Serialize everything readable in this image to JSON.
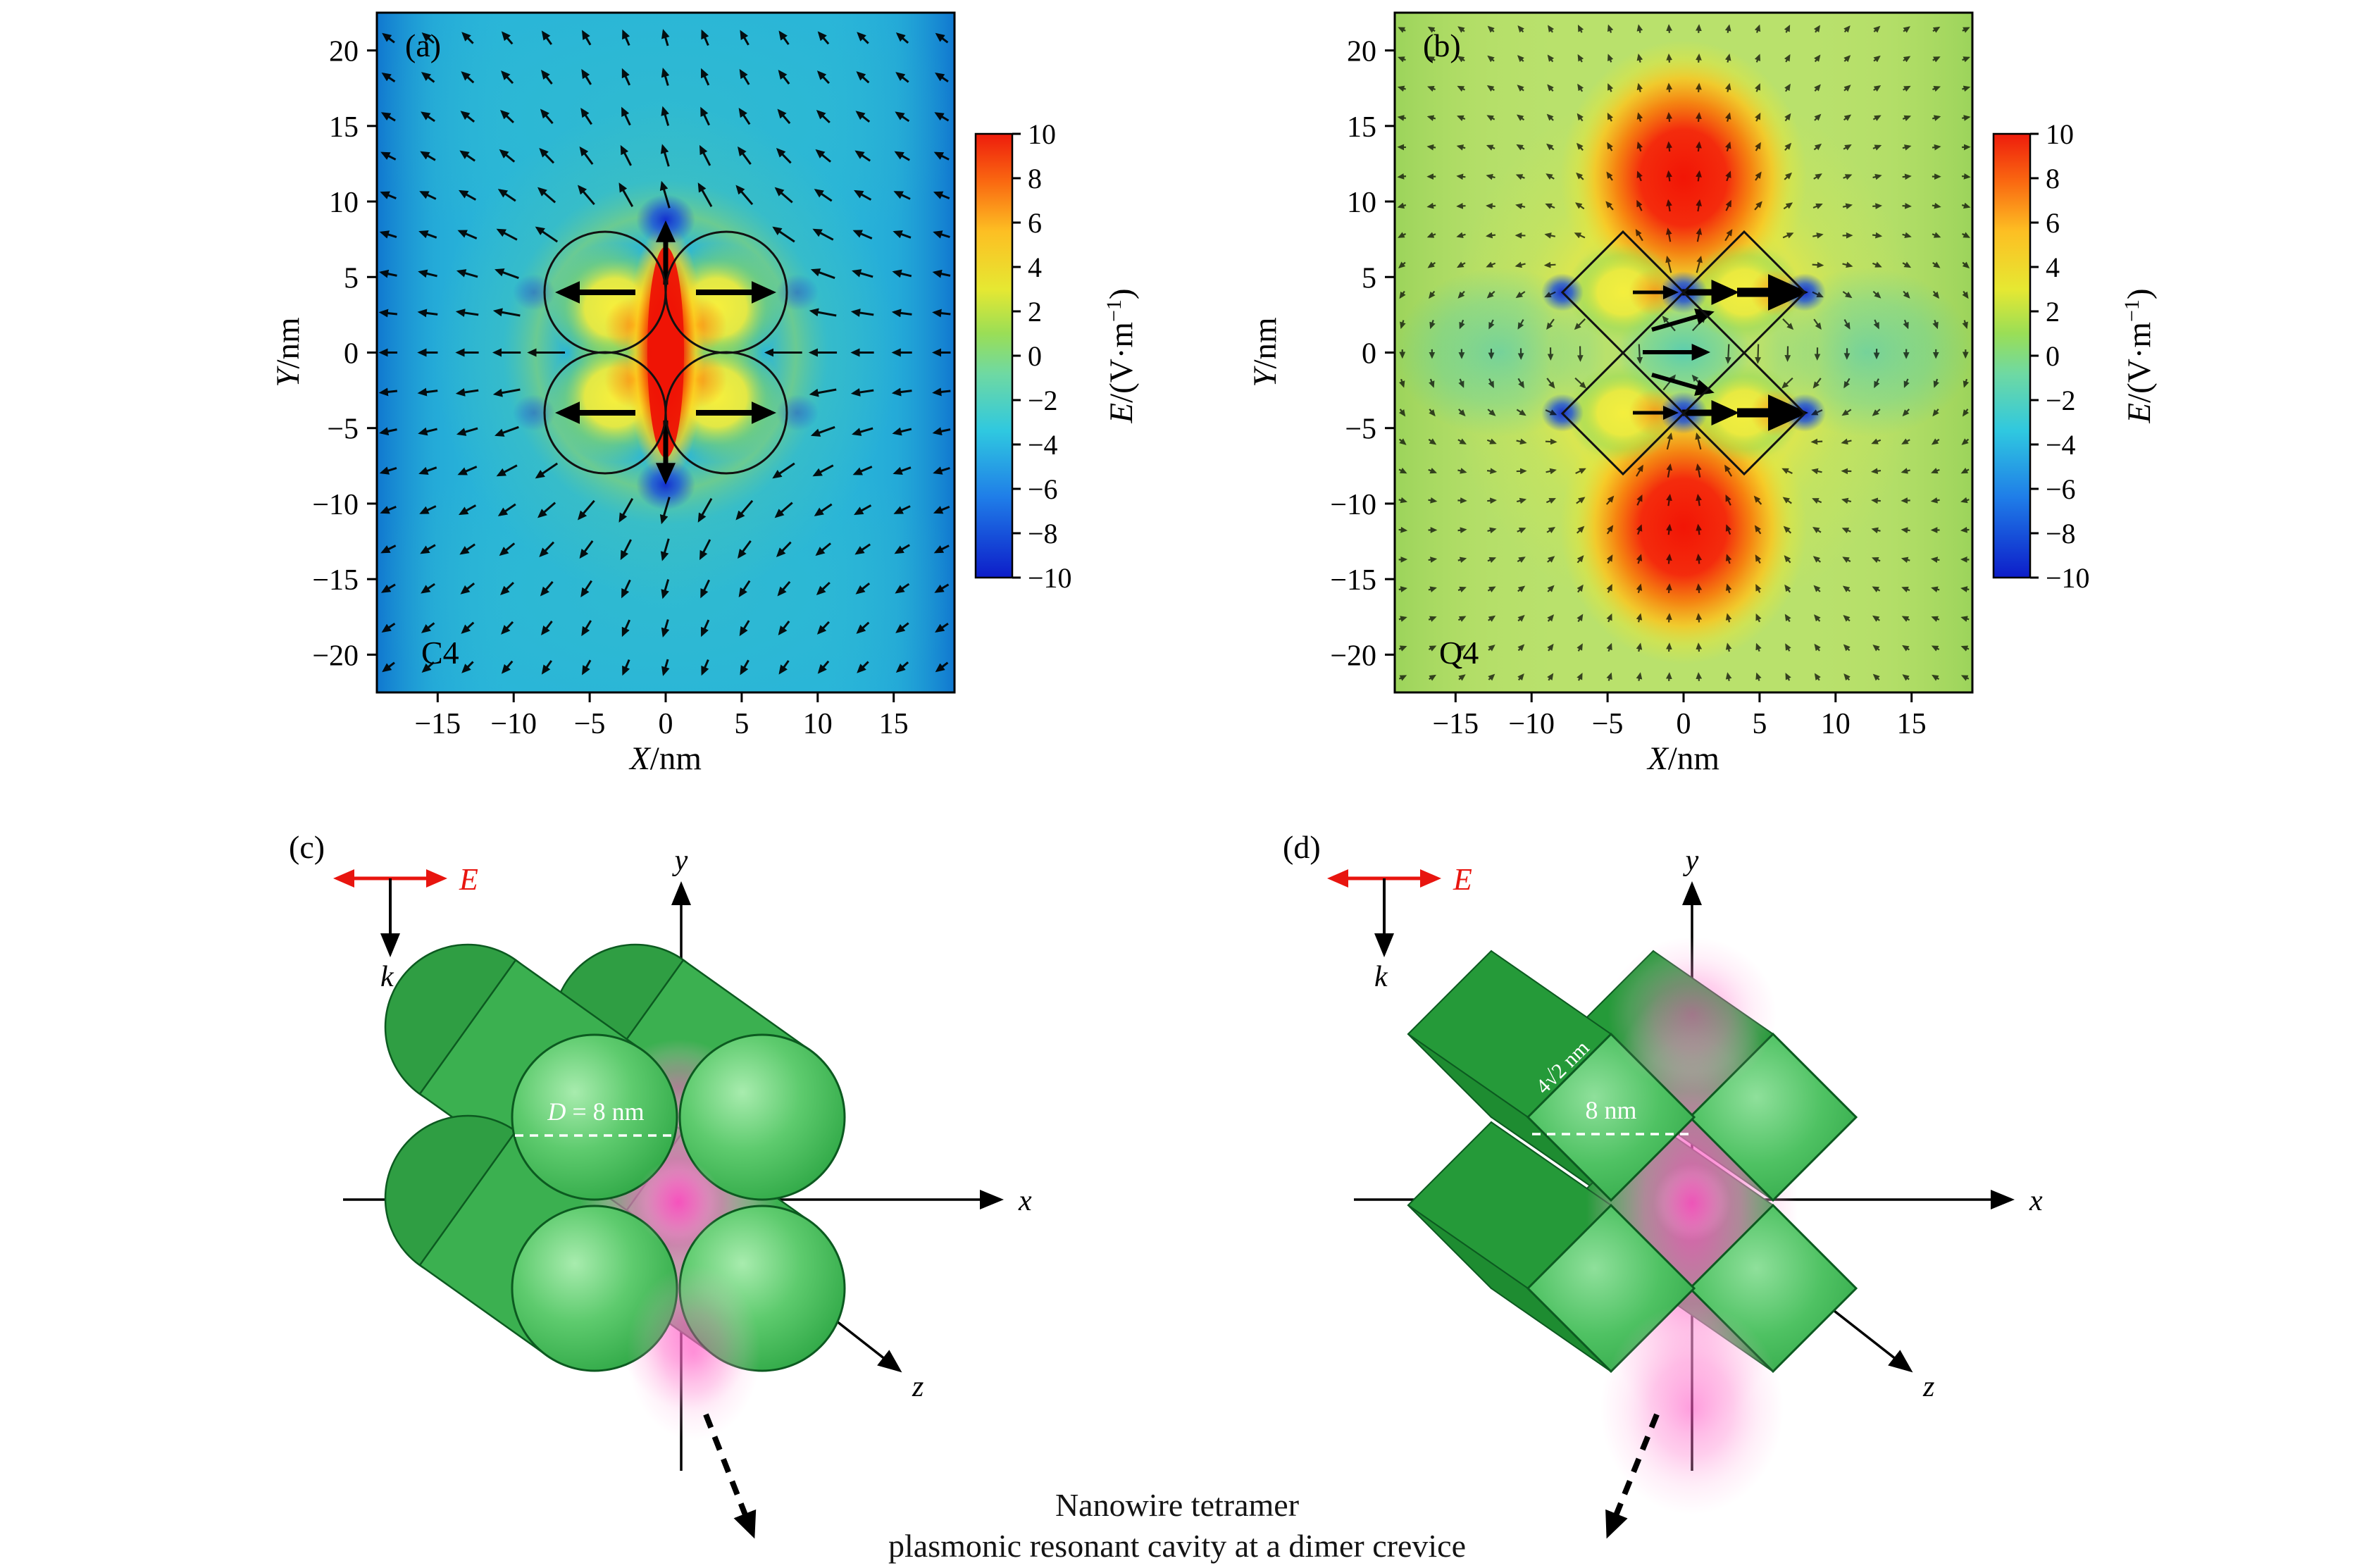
{
  "figure": {
    "caption_line1": "Nanowire tetramer",
    "caption_line2": "plasmonic resonant cavity at a dimer crevice"
  },
  "chart_data": [
    {
      "id": "a",
      "type": "heatmap",
      "panel_label": "(a)",
      "structure_tag": "C4",
      "xlabel_var": "X",
      "xlabel_unit": "/nm",
      "ylabel_var": "Y",
      "ylabel_unit": "/nm",
      "xlim": [
        -19,
        19
      ],
      "ylim": [
        -22.5,
        22.5
      ],
      "x_ticks": [
        -15,
        -10,
        -5,
        0,
        5,
        10,
        15
      ],
      "y_ticks": [
        20,
        15,
        10,
        5,
        0,
        -5,
        -10,
        -15,
        -20
      ],
      "colorbar": {
        "label_var": "E",
        "label_mid": "/(V·m",
        "label_sup": "−1",
        "label_post": ")",
        "min": -10,
        "max": 10,
        "ticks": [
          10,
          8,
          6,
          4,
          2,
          0,
          -2,
          -4,
          -6,
          -8,
          -10
        ]
      },
      "geometry": {
        "shape": "circle",
        "count": 4,
        "diameter_nm": 8,
        "centers_nm": [
          [
            -4,
            4
          ],
          [
            4,
            4
          ],
          [
            -4,
            -4
          ],
          [
            4,
            -4
          ]
        ]
      },
      "field_features": [
        {
          "region": "central vertical crevice between the four wires",
          "pos_nm": [
            0,
            0
          ],
          "value": "+10 (red maximum lobe)"
        },
        {
          "region": "inside each circular wire near the junctions",
          "value": "+2 to +4 (yellow)"
        },
        {
          "region": "just above and below the cluster",
          "pos_nm": [
            [
              0,
              8.5
            ],
            [
              0,
              -8.5
            ]
          ],
          "value": "−10 (dark blue minima)"
        },
        {
          "region": "background",
          "value": "−3 to −5 (cyan / blue toward left-right edges)"
        }
      ],
      "quiver_summary": "Arrows point toward −x over most of the map, turning upward above the cluster and downward below it; thick arrows diverge horizontally outward inside the wires and vertically out of the central hot spot."
    },
    {
      "id": "b",
      "type": "heatmap",
      "panel_label": "(b)",
      "structure_tag": "Q4",
      "xlabel_var": "X",
      "xlabel_unit": "/nm",
      "ylabel_var": "Y",
      "ylabel_unit": "/nm",
      "xlim": [
        -19,
        19
      ],
      "ylim": [
        -22.5,
        22.5
      ],
      "x_ticks": [
        -15,
        -10,
        -5,
        0,
        5,
        10,
        15
      ],
      "y_ticks": [
        20,
        15,
        10,
        5,
        0,
        -5,
        -10,
        -15,
        -20
      ],
      "colorbar": {
        "label_var": "E",
        "label_mid": "/(V·m",
        "label_sup": "−1",
        "label_post": ")",
        "min": -10,
        "max": 10,
        "ticks": [
          10,
          8,
          6,
          4,
          2,
          0,
          -2,
          -4,
          -6,
          -8,
          -10
        ]
      },
      "geometry": {
        "shape": "square rotated 45°",
        "count": 4,
        "side_nm": "4√2",
        "diagonal_nm": 8,
        "centers_nm": [
          [
            -4,
            4
          ],
          [
            4,
            4
          ],
          [
            -4,
            -4
          ],
          [
            4,
            -4
          ]
        ]
      },
      "field_features": [
        {
          "region": "above and below the cluster",
          "pos_nm": [
            [
              0,
              10.5
            ],
            [
              0,
              -10.5
            ]
          ],
          "value": "+10 (large red lobes)"
        },
        {
          "region": "crevice and outer tips of the squares",
          "pos_nm": [
            [
              0,
              4
            ],
            [
              0,
              -4
            ],
            [
              8,
              4
            ],
            [
              8,
              -4
            ],
            [
              -8,
              4
            ],
            [
              -8,
              -4
            ]
          ],
          "value": "−10 (dark blue spots)"
        },
        {
          "region": "inside each square rod",
          "value": "+2 to +4 (yellow / orange)"
        },
        {
          "region": "background",
          "value": "0 to +2 (green), turquoise beside the cluster"
        }
      ],
      "quiver_summary": "Weak short arrows circulate around the two red lobes; strong thick arrows point along +x through the two horizontal crevice rows between the rotated squares."
    }
  ],
  "schematics": [
    {
      "panel_label": "(c)",
      "type": "cylindrical nanowire tetramer",
      "e_field_label": "E",
      "wavevector_label": "k",
      "axis_x": "x",
      "axis_y": "y",
      "axis_z": "z",
      "dimension_var": "D",
      "dimension_rest": " = 8 nm"
    },
    {
      "panel_label": "(d)",
      "type": "square nanorod tetramer (rotated 45°)",
      "e_field_label": "E",
      "wavevector_label": "k",
      "axis_x": "x",
      "axis_y": "y",
      "axis_z": "z",
      "diagonal_label": "4√2 nm",
      "width_label": "8 nm"
    }
  ],
  "colors": {
    "jet": [
      {
        "o": "0%",
        "c": "#0d1dc9"
      },
      {
        "o": "18%",
        "c": "#1f7de8"
      },
      {
        "o": "33%",
        "c": "#2fc8e0"
      },
      {
        "o": "46%",
        "c": "#6fd9a2"
      },
      {
        "o": "55%",
        "c": "#9ade56"
      },
      {
        "o": "65%",
        "c": "#e6e832"
      },
      {
        "o": "78%",
        "c": "#fdbf23"
      },
      {
        "o": "89%",
        "c": "#fa6a11"
      },
      {
        "o": "100%",
        "c": "#ee1c0c"
      }
    ],
    "background_a": "#29b5d9",
    "background_b": "#b9e16c",
    "nanowire_green": "#3db854",
    "cavity_pink": "#ff57c4",
    "e_field_red": "#e8150f",
    "hotspot_red": "#f21505",
    "minimum_blue": "#0f27d2"
  }
}
